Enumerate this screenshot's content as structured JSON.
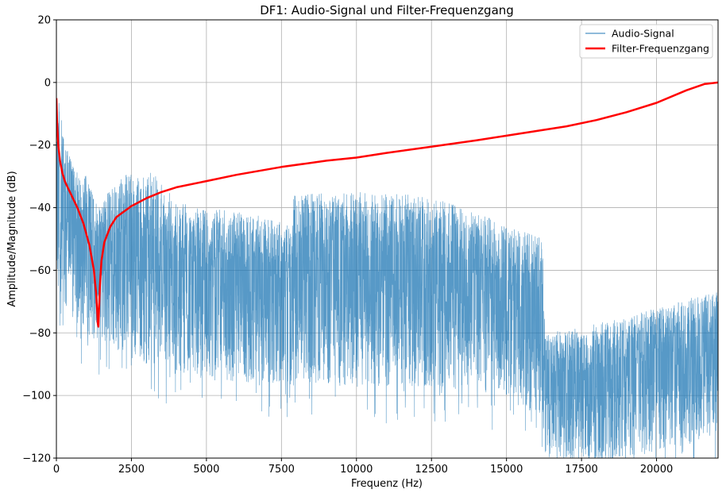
{
  "chart_data": {
    "type": "line",
    "title": "DF1: Audio-Signal und Filter-Frequenzgang",
    "xlabel": "Frequenz (Hz)",
    "ylabel": "Amplitude/Magnitude (dB)",
    "xlim": [
      0,
      22050
    ],
    "ylim": [
      -120,
      20
    ],
    "xticks": [
      0,
      2500,
      5000,
      7500,
      10000,
      12500,
      15000,
      17500,
      20000
    ],
    "xtick_labels": [
      "0",
      "2500",
      "5000",
      "7500",
      "10000",
      "12500",
      "15000",
      "17500",
      "20000"
    ],
    "yticks": [
      20,
      0,
      -20,
      -40,
      -60,
      -80,
      -100,
      -120
    ],
    "ytick_labels": [
      "20",
      "0",
      "−20",
      "−40",
      "−60",
      "−80",
      "−100",
      "−120"
    ],
    "grid": true,
    "legend_position": "top-right",
    "series": [
      {
        "name": "Audio-Signal",
        "color": "#1f77b4",
        "style": "dense-noisy",
        "envelope_x": [
          0,
          80,
          200,
          500,
          1000,
          1400,
          2000,
          3300,
          4000,
          5000,
          6500,
          7800,
          7900,
          9000,
          10000,
          11000,
          12000,
          13000,
          14000,
          15000,
          15500,
          16200,
          16300,
          17000,
          18000,
          19000,
          20000,
          21000,
          22050
        ],
        "upper_db": [
          -20,
          -3,
          -15,
          -25,
          -30,
          -40,
          -30,
          -28,
          -38,
          -40,
          -42,
          -45,
          -36,
          -35,
          -35,
          -35,
          -36,
          -38,
          -42,
          -45,
          -47,
          -50,
          -80,
          -79,
          -77,
          -75,
          -72,
          -69,
          -67
        ],
        "lower_db": [
          -60,
          -70,
          -70,
          -75,
          -80,
          -82,
          -85,
          -90,
          -92,
          -95,
          -96,
          -97,
          -97,
          -97,
          -97,
          -97,
          -97,
          -98,
          -98,
          -100,
          -104,
          -108,
          -120,
          -120,
          -120,
          -120,
          -118,
          -116,
          -112
        ]
      },
      {
        "name": "Filter-Frequenzgang",
        "color": "#ff0000",
        "style": "line",
        "x": [
          0,
          20,
          60,
          120,
          200,
          300,
          500,
          700,
          900,
          1100,
          1250,
          1320,
          1360,
          1380,
          1400,
          1420,
          1450,
          1500,
          1600,
          1800,
          2000,
          2500,
          3000,
          3500,
          4000,
          5000,
          6000,
          7500,
          9000,
          10000,
          11000,
          12500,
          14000,
          15000,
          16000,
          17000,
          18000,
          19000,
          20000,
          21000,
          21600,
          22050
        ],
        "y": [
          -5,
          -12,
          -20,
          -25,
          -29,
          -32,
          -36,
          -40,
          -45,
          -52,
          -60,
          -67,
          -73,
          -77,
          -78,
          -73,
          -65,
          -57,
          -51,
          -46,
          -43,
          -39.5,
          -37,
          -35,
          -33.5,
          -31.5,
          -29.5,
          -27,
          -25,
          -24,
          -22.5,
          -20.5,
          -18.5,
          -17,
          -15.5,
          -14,
          -12,
          -9.5,
          -6.5,
          -2.5,
          -0.5,
          0
        ]
      }
    ]
  }
}
